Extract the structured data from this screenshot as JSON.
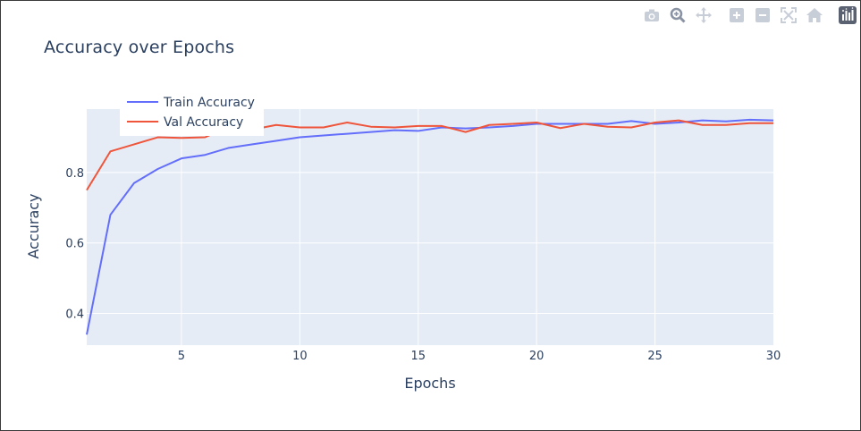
{
  "modebar": {
    "buttons": [
      {
        "icon": "camera-icon",
        "label": "Download plot as a png"
      },
      {
        "icon": "zoom-icon",
        "label": "Zoom"
      },
      {
        "icon": "pan-icon",
        "label": "Pan"
      },
      {
        "icon": "zoom-in-icon",
        "label": "Zoom in"
      },
      {
        "icon": "zoom-out-icon",
        "label": "Zoom out"
      },
      {
        "icon": "autoscale-icon",
        "label": "Autoscale"
      },
      {
        "icon": "home-icon",
        "label": "Reset axes"
      },
      {
        "icon": "plotly-logo-icon",
        "label": "Produced with Plotly"
      }
    ]
  },
  "chart_data": {
    "type": "line",
    "title": "Accuracy over Epochs",
    "xlabel": "Epochs",
    "ylabel": "Accuracy",
    "xlim": [
      1,
      30
    ],
    "ylim": [
      0.31,
      0.98
    ],
    "xticks": [
      5,
      10,
      15,
      20,
      25,
      30
    ],
    "yticks": [
      0.4,
      0.6,
      0.8
    ],
    "grid": true,
    "legend_position": "top-left",
    "plot_bg": "#e5ecf6",
    "x": [
      1,
      2,
      3,
      4,
      5,
      6,
      7,
      8,
      9,
      10,
      11,
      12,
      13,
      14,
      15,
      16,
      17,
      18,
      19,
      20,
      21,
      22,
      23,
      24,
      25,
      26,
      27,
      28,
      29,
      30
    ],
    "series": [
      {
        "name": "Train Accuracy",
        "color": "#636efa",
        "values": [
          0.34,
          0.68,
          0.77,
          0.81,
          0.84,
          0.85,
          0.87,
          0.88,
          0.89,
          0.9,
          0.905,
          0.91,
          0.915,
          0.92,
          0.918,
          0.928,
          0.925,
          0.928,
          0.932,
          0.938,
          0.938,
          0.938,
          0.938,
          0.946,
          0.938,
          0.942,
          0.948,
          0.945,
          0.95,
          0.948
        ]
      },
      {
        "name": "Val Accuracy",
        "color": "#ef553b",
        "values": [
          0.75,
          0.86,
          0.88,
          0.9,
          0.898,
          0.9,
          0.93,
          0.922,
          0.935,
          0.928,
          0.928,
          0.942,
          0.93,
          0.928,
          0.932,
          0.932,
          0.915,
          0.935,
          0.938,
          0.942,
          0.926,
          0.938,
          0.93,
          0.928,
          0.942,
          0.948,
          0.935,
          0.935,
          0.94,
          0.94
        ]
      }
    ]
  }
}
